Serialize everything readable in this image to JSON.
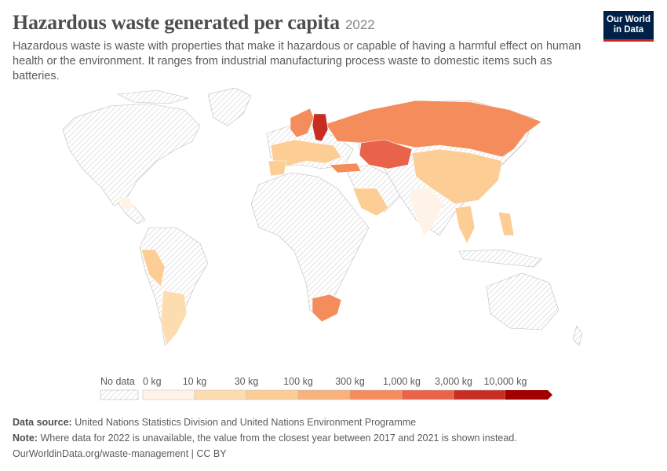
{
  "header": {
    "title": "Hazardous waste generated per capita",
    "year": "2022",
    "subtitle": "Hazardous waste is waste with properties that make it hazardous or capable of having a harmful effect on human health or the environment. It ranges from industrial manufacturing process waste to domestic items such as batteries."
  },
  "logo": {
    "line1": "Our World",
    "line2": "in Data"
  },
  "legend": {
    "no_data_label": "No data",
    "bins": [
      {
        "label": "0 kg",
        "color": "#fef3e6"
      },
      {
        "label": "10 kg",
        "color": "#fddcb0"
      },
      {
        "label": "30 kg",
        "color": "#fccd94"
      },
      {
        "label": "100 kg",
        "color": "#f8b27a"
      },
      {
        "label": "300 kg",
        "color": "#f58c5b"
      },
      {
        "label": "1,000 kg",
        "color": "#e8634a"
      },
      {
        "label": "3,000 kg",
        "color": "#c72d22"
      },
      {
        "label": "10,000 kg",
        "color": "#a10000"
      }
    ]
  },
  "map": {
    "no_data_color": "#e4e4e4",
    "regions": [
      {
        "name": "Russia",
        "color": "#f58c5b"
      },
      {
        "name": "Kazakhstan",
        "color": "#e8634a"
      },
      {
        "name": "Finland",
        "color": "#c72d22"
      },
      {
        "name": "South Africa",
        "color": "#f58c5b"
      },
      {
        "name": "China",
        "color": "#fccd94"
      },
      {
        "name": "India",
        "color": "#fef3e6"
      },
      {
        "name": "Saudi Arabia",
        "color": "#fccd94"
      },
      {
        "name": "Peru",
        "color": "#fccd94"
      },
      {
        "name": "Argentina",
        "color": "#fddcb0"
      },
      {
        "name": "Western Europe",
        "color": "#fccd94"
      },
      {
        "name": "Scandinavia",
        "color": "#f58c5b"
      },
      {
        "name": "Turkey",
        "color": "#f58c5b"
      },
      {
        "name": "Southeast Asia",
        "color": "#fccd94"
      }
    ]
  },
  "footer": {
    "source_label": "Data source:",
    "source_text": "United Nations Statistics Division and United Nations Environment Programme",
    "note_label": "Note:",
    "note_text": "Where data for 2022 is unavailable, the value from the closest year between 2017 and 2021 is shown instead.",
    "credit": "OurWorldinData.org/waste-management | CC BY"
  }
}
